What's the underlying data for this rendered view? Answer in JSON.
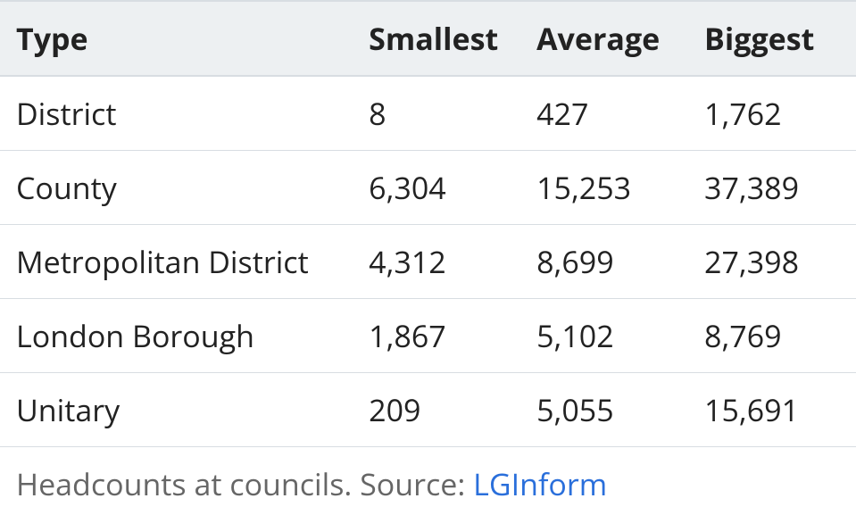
{
  "table": {
    "type": "table",
    "columns": [
      "Type",
      "Smallest",
      "Average",
      "Biggest"
    ],
    "column_widths_pct": [
      41,
      19.5,
      19.5,
      20
    ],
    "header_background_color": "#edf0f2",
    "header_font_weight": 700,
    "header_fontsize": 34,
    "header_text_color": "#222222",
    "body_fontsize": 34,
    "body_text_color": "#222222",
    "row_border_color": "#d8dde2",
    "top_border_color": "#d8dde2",
    "top_border_width": 2,
    "row_border_width": 1,
    "rows": [
      [
        "District",
        "8",
        "427",
        "1,762"
      ],
      [
        "County",
        "6,304",
        "15,253",
        "37,389"
      ],
      [
        "Metropolitan District",
        "4,312",
        "8,699",
        "27,398"
      ],
      [
        "London Borough",
        "1,867",
        "5,102",
        "8,769"
      ],
      [
        "Unitary",
        "209",
        "5,055",
        "15,691"
      ]
    ]
  },
  "caption": {
    "text_prefix": "Headcounts at councils. Source: ",
    "link_text": "LGInform",
    "text_color": "#666666",
    "link_color": "#2a6fdb",
    "fontsize": 34
  }
}
